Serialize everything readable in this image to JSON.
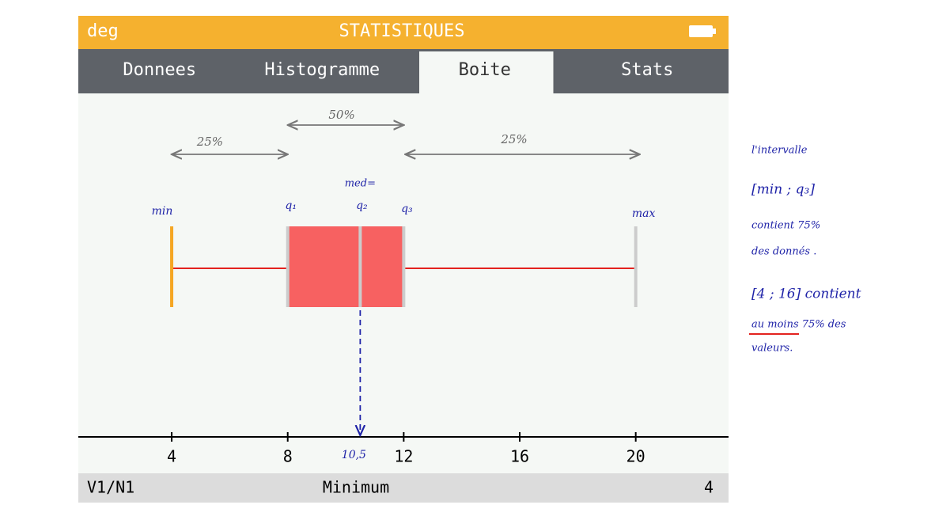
{
  "header": {
    "mode": "deg",
    "title": "STATISTIQUES"
  },
  "tabs": [
    "Donnees",
    "Histogramme",
    "Boite",
    "Stats"
  ],
  "active_tab": 2,
  "plot": {
    "xlim": [
      0.78,
      23.2
    ],
    "xticks": [
      4,
      8,
      12,
      16,
      20
    ],
    "box": {
      "min": 4,
      "q1": 8,
      "median": 10.5,
      "q3": 12,
      "max": 20
    }
  },
  "footer": {
    "series": "V1/N1",
    "label": "Minimum",
    "value": "4"
  },
  "annotations": {
    "min": "min",
    "q1": "q₁",
    "q2": "q₂",
    "med": "med=",
    "q3": "q₃",
    "max": "max",
    "median_value": "10,5",
    "left_pct": "25%",
    "mid_pct": "50%",
    "right_pct": "25%"
  },
  "notes": [
    "l'intervalle",
    "[min ; q₃]",
    "contient 75%",
    "des donnés .",
    "[4 ; 16] contient",
    "au moins 75% des",
    "valeurs."
  ]
}
